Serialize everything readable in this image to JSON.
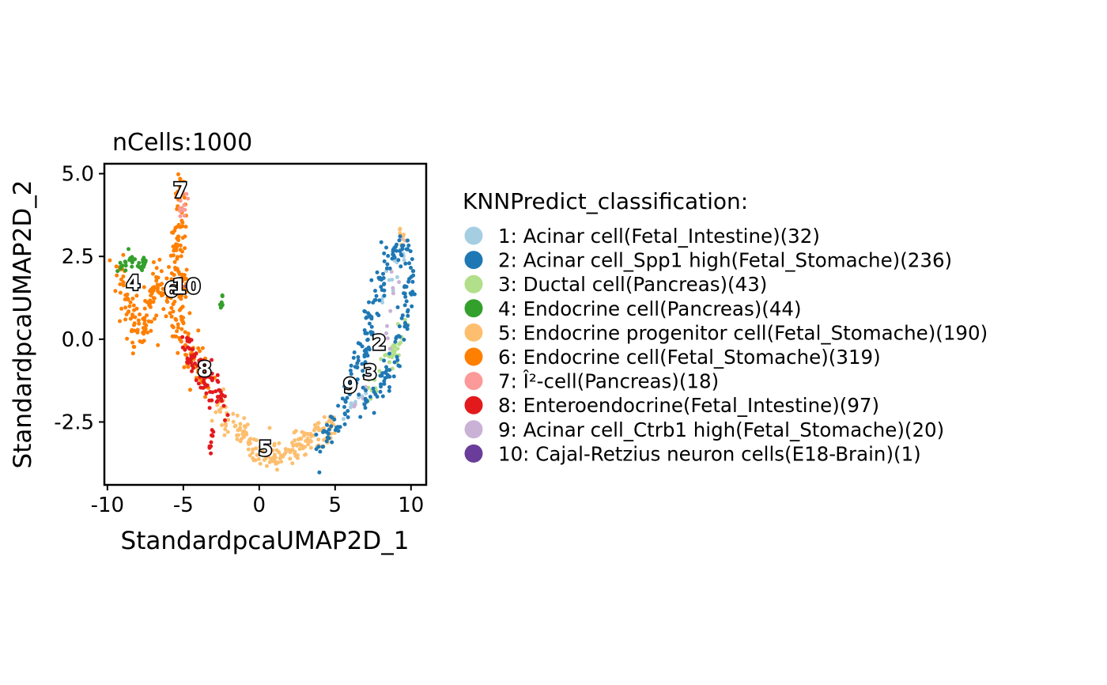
{
  "chart_data": {
    "type": "scatter",
    "title": "nCells:1000",
    "xlabel": "StandardpcaUMAP2D_1",
    "ylabel": "StandardpcaUMAP2D_2",
    "xlim": [
      -10.2,
      11.0
    ],
    "ylim": [
      -4.4,
      5.3
    ],
    "xticks": [
      -10,
      -5,
      0,
      5,
      10
    ],
    "xtick_labels": [
      "-10",
      "-5",
      "0",
      "5",
      "10"
    ],
    "yticks": [
      -2.5,
      0.0,
      2.5,
      5.0
    ],
    "ytick_labels": [
      "-2.5",
      "0.0",
      "2.5",
      "5.0"
    ],
    "grid": false,
    "legend_placement": "right",
    "legend_title": "KNNPredict_classification:",
    "series": [
      {
        "id": "1",
        "name": "1: Acinar cell(Fetal_Intestine)(32)",
        "color": "#A6CEE3",
        "count": 32,
        "path": [
          [
            9.6,
            1.5
          ],
          [
            9.6,
            2.7
          ],
          [
            8.5,
            1.8
          ],
          [
            7.8,
            0.5
          ],
          [
            7.5,
            -0.8
          ],
          [
            6.5,
            -1.8
          ],
          [
            5.5,
            -2.4
          ]
        ],
        "spread": 0.3
      },
      {
        "id": "2",
        "name": "2: Acinar cell_Spp1 high(Fetal_Stomache)(236)",
        "color": "#1F78B4",
        "count": 236,
        "path": [
          [
            4.0,
            -3.3
          ],
          [
            5.5,
            -2.2
          ],
          [
            6.5,
            -1.0
          ],
          [
            7.2,
            0.5
          ],
          [
            8.0,
            1.7
          ],
          [
            8.8,
            2.7
          ],
          [
            9.5,
            3.0
          ],
          [
            9.9,
            2.0
          ],
          [
            9.6,
            0.5
          ],
          [
            8.8,
            -0.6
          ],
          [
            7.8,
            -1.6
          ],
          [
            6.8,
            -1.9
          ]
        ],
        "spread": 0.38
      },
      {
        "id": "3",
        "name": "3: Ductal cell(Pancreas)(43)",
        "color": "#B2DF8A",
        "count": 43,
        "path": [
          [
            9.7,
            0.5
          ],
          [
            9.0,
            -0.3
          ],
          [
            8.2,
            -0.9
          ],
          [
            7.6,
            -1.3
          ],
          [
            7.0,
            -1.6
          ]
        ],
        "spread": 0.3
      },
      {
        "id": "4",
        "name": "4: Endocrine cell(Pancreas)(44)",
        "color": "#33A02C",
        "count": 44,
        "path": [
          [
            -9.3,
            2.1
          ],
          [
            -8.9,
            2.4
          ],
          [
            -8.3,
            2.3
          ],
          [
            -7.5,
            2.3
          ]
        ],
        "spread": 0.2,
        "extra": {
          "path": [
            [
              -2.5,
              1.4
            ],
            [
              -2.5,
              1.0
            ]
          ],
          "spread": 0.1,
          "share": 0.22
        }
      },
      {
        "id": "5",
        "name": "5: Endocrine progenitor cell(Fetal_Stomache)(190)",
        "color": "#FDBF6F",
        "count": 190,
        "path": [
          [
            -2.8,
            -1.9
          ],
          [
            -1.8,
            -2.5
          ],
          [
            -0.8,
            -3.0
          ],
          [
            0.0,
            -3.4
          ],
          [
            1.0,
            -3.6
          ],
          [
            2.0,
            -3.4
          ],
          [
            3.0,
            -3.1
          ],
          [
            4.0,
            -2.9
          ],
          [
            5.0,
            -2.6
          ]
        ],
        "spread": 0.38,
        "extra": {
          "path": [
            [
              9.3,
              3.3
            ],
            [
              9.6,
              2.9
            ]
          ],
          "spread": 0.15,
          "share": 0.04
        }
      },
      {
        "id": "6",
        "name": "6: Endocrine cell(Fetal_Stomache)(319)",
        "color": "#FF7F00",
        "count": 319,
        "path": [
          [
            -9.3,
            2.2
          ],
          [
            -8.8,
            1.4
          ],
          [
            -8.3,
            0.6
          ],
          [
            -7.8,
            0.0
          ],
          [
            -7.0,
            1.2
          ],
          [
            -6.5,
            1.9
          ],
          [
            -5.8,
            1.2
          ],
          [
            -5.2,
            0.5
          ],
          [
            -4.8,
            -0.3
          ],
          [
            -4.0,
            -0.9
          ],
          [
            -3.5,
            -1.3
          ]
        ],
        "spread": 0.48,
        "extra": {
          "path": [
            [
              -5.0,
              4.8
            ],
            [
              -5.2,
              4.0
            ],
            [
              -5.3,
              3.3
            ],
            [
              -5.6,
              2.6
            ],
            [
              -5.4,
              2.0
            ],
            [
              -4.9,
              1.5
            ]
          ],
          "spread": 0.28,
          "share": 0.3
        }
      },
      {
        "id": "7",
        "name": "7: Î²-cell(Pancreas)(18)",
        "color": "#FB9A99",
        "count": 18,
        "path": [
          [
            -4.9,
            4.7
          ],
          [
            -5.0,
            4.3
          ],
          [
            -5.1,
            3.8
          ]
        ],
        "spread": 0.25
      },
      {
        "id": "8",
        "name": "8: Enteroendocrine(Fetal_Intestine)(97)",
        "color": "#E31A1C",
        "count": 97,
        "path": [
          [
            -5.0,
            -0.1
          ],
          [
            -4.3,
            -0.6
          ],
          [
            -3.6,
            -0.9
          ],
          [
            -3.0,
            -1.4
          ],
          [
            -2.5,
            -1.9
          ]
        ],
        "spread": 0.38,
        "extra": {
          "path": [
            [
              -3.0,
              -2.6
            ],
            [
              -3.2,
              -3.4
            ]
          ],
          "spread": 0.15,
          "share": 0.1
        }
      },
      {
        "id": "9",
        "name": "9: Acinar cell_Ctrb1 high(Fetal_Stomache)(20)",
        "color": "#CAB2D6",
        "count": 20,
        "path": [
          [
            5.8,
            -2.0
          ],
          [
            6.3,
            -1.7
          ],
          [
            8.2,
            -0.6
          ],
          [
            9.3,
            2.3
          ],
          [
            9.6,
            3.0
          ]
        ],
        "spread": 0.3
      },
      {
        "id": "10",
        "name": "10: Cajal-Retzius neuron cells(E18-Brain)(1)",
        "color": "#6A3D9A",
        "count": 1,
        "points": [
          [
            -4.8,
            1.6
          ]
        ]
      }
    ],
    "cluster_labels": [
      {
        "text": "7",
        "x": -5.2,
        "y": 4.5
      },
      {
        "text": "4",
        "x": -8.3,
        "y": 1.7
      },
      {
        "text": "6",
        "x": -5.8,
        "y": 1.5
      },
      {
        "text": "10",
        "x": -4.8,
        "y": 1.6
      },
      {
        "text": "8",
        "x": -3.6,
        "y": -0.9
      },
      {
        "text": "5",
        "x": 0.4,
        "y": -3.3
      },
      {
        "text": "2",
        "x": 7.9,
        "y": -0.1
      },
      {
        "text": "3",
        "x": 7.3,
        "y": -1.0
      },
      {
        "text": "9",
        "x": 6.0,
        "y": -1.4
      }
    ]
  }
}
